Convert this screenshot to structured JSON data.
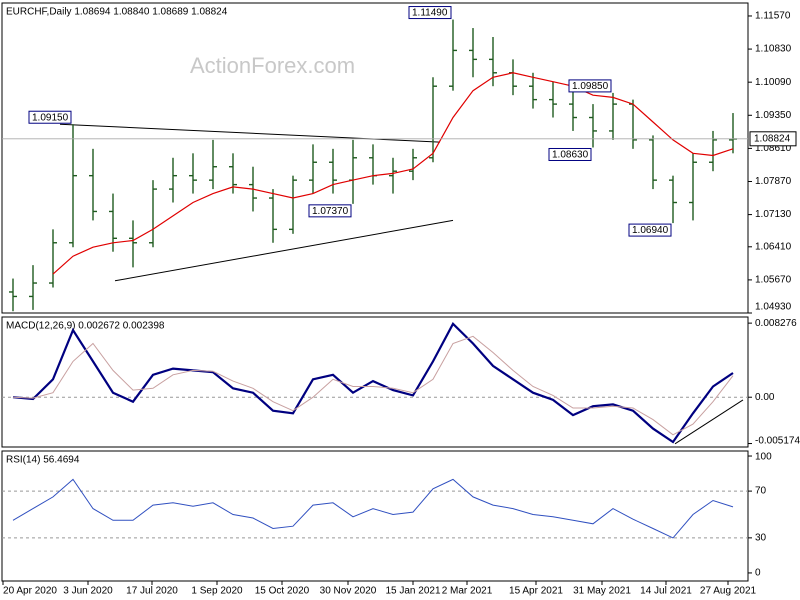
{
  "chart_data": [
    {
      "type": "ohlc",
      "title": "EURCHF,Daily  1.08694 1.08840 1.08689 1.08824",
      "watermark": "ActionForex.com",
      "xlim": [
        0,
        37
      ],
      "ylim": [
        1.0493,
        1.1186
      ],
      "yticks": [
        {
          "value": 1.1157,
          "label": "1.11570"
        },
        {
          "value": 1.1083,
          "label": "1.10830"
        },
        {
          "value": 1.1009,
          "label": "1.10090"
        },
        {
          "value": 1.0935,
          "label": "1.09350"
        },
        {
          "value": 1.0861,
          "label": "1.08610"
        },
        {
          "value": 1.0787,
          "label": "1.07870"
        },
        {
          "value": 1.0713,
          "label": "1.07130"
        },
        {
          "value": 1.0641,
          "label": "1.06410"
        },
        {
          "value": 1.0567,
          "label": "1.05670"
        },
        {
          "value": 1.0493,
          "label": "1.04930"
        }
      ],
      "color": "#1f5a1f",
      "open": [
        1.054,
        1.053,
        1.056,
        1.065,
        1.08,
        1.072,
        1.066,
        1.065,
        1.077,
        1.08,
        1.079,
        1.082,
        1.078,
        1.075,
        1.068,
        1.079,
        1.083,
        1.079,
        1.084,
        1.08,
        1.081,
        1.084,
        1.1,
        1.108,
        1.106,
        1.103,
        1.1,
        1.097,
        1.096,
        1.093,
        1.09,
        1.096,
        1.088,
        1.079,
        1.074,
        1.083,
        1.088
      ],
      "high": [
        1.057,
        1.06,
        1.068,
        1.0915,
        1.086,
        1.076,
        1.07,
        1.079,
        1.084,
        1.085,
        1.088,
        1.085,
        1.082,
        1.077,
        1.08,
        1.087,
        1.086,
        1.088,
        1.087,
        1.084,
        1.086,
        1.102,
        1.1149,
        1.113,
        1.111,
        1.106,
        1.103,
        1.101,
        1.099,
        1.096,
        1.0985,
        1.097,
        1.089,
        1.08,
        1.085,
        1.09,
        1.094
      ],
      "low": [
        1.0497,
        1.05,
        1.055,
        1.064,
        1.07,
        1.063,
        1.0595,
        1.064,
        1.074,
        1.076,
        1.077,
        1.076,
        1.072,
        1.065,
        1.067,
        1.076,
        1.076,
        1.0737,
        1.078,
        1.076,
        1.079,
        1.083,
        1.099,
        1.102,
        1.1,
        1.098,
        1.095,
        1.093,
        1.09,
        1.0863,
        1.088,
        1.086,
        1.077,
        1.0694,
        1.07,
        1.081,
        1.085
      ],
      "close": [
        1.053,
        1.056,
        1.065,
        1.08,
        1.072,
        1.066,
        1.065,
        1.077,
        1.08,
        1.079,
        1.082,
        1.078,
        1.075,
        1.068,
        1.079,
        1.083,
        1.079,
        1.084,
        1.08,
        1.081,
        1.084,
        1.1,
        1.108,
        1.106,
        1.103,
        1.1,
        1.097,
        1.096,
        1.093,
        1.09,
        1.096,
        1.088,
        1.079,
        1.074,
        1.083,
        1.088,
        1.0882
      ],
      "ma": {
        "color": "#e00000",
        "values": [
          null,
          null,
          1.058,
          1.062,
          1.064,
          1.065,
          1.0655,
          1.068,
          1.071,
          1.074,
          1.076,
          1.0775,
          1.077,
          1.076,
          1.075,
          1.076,
          1.078,
          1.079,
          1.08,
          1.0805,
          1.0815,
          1.085,
          1.093,
          1.099,
          1.102,
          1.103,
          1.102,
          1.101,
          1.1,
          1.098,
          1.0975,
          1.096,
          1.092,
          1.088,
          1.085,
          1.0845,
          1.086
        ]
      },
      "last_price": {
        "value": 1.08824,
        "label": "1.08824"
      },
      "trendlines": [
        {
          "x": [
            2.85,
            21.85
          ],
          "y": [
            1.0915,
            1.0875
          ]
        },
        {
          "x": [
            5.6,
            22.5
          ],
          "y": [
            1.0565,
            1.07
          ]
        }
      ],
      "annotations": [
        {
          "text": "1.11490",
          "x": 22,
          "value": 1.1149
        },
        {
          "text": "1.09150",
          "x": 3,
          "value": 1.0915
        },
        {
          "text": "1.07370",
          "x": 17,
          "value": 1.0737
        },
        {
          "text": "1.09850",
          "x": 30,
          "value": 1.0985
        },
        {
          "text": "1.08630",
          "x": 29,
          "value": 1.0863
        },
        {
          "text": "1.06940",
          "x": 33,
          "value": 1.0694
        }
      ]
    },
    {
      "type": "line",
      "title": "MACD(12,26,9) 0.002672 0.002398",
      "xlim": [
        0,
        37
      ],
      "ylim": [
        -0.00556,
        0.00896
      ],
      "yticks": [
        0.008276,
        {
          "value": 0,
          "label": "0.00"
        },
        -0.005174
      ],
      "levels": [
        0
      ],
      "series": [
        {
          "color": "#000080",
          "width": 2.2,
          "values": [
            0.0,
            -0.0002,
            0.002,
            0.0075,
            0.004,
            0.0005,
            -0.0005,
            0.0025,
            0.0032,
            0.003,
            0.0028,
            0.001,
            0.0005,
            -0.0015,
            -0.0018,
            0.002,
            0.0025,
            0.0005,
            0.0018,
            0.0008,
            0.0002,
            0.004,
            0.0082,
            0.006,
            0.0035,
            0.002,
            0.0005,
            -0.0003,
            -0.002,
            -0.001,
            -0.0008,
            -0.0015,
            -0.0035,
            -0.005,
            -0.0018,
            0.0012,
            0.0027
          ]
        },
        {
          "color": "#c8a0a0",
          "width": 1,
          "values": [
            0.0,
            -0.0001,
            0.0005,
            0.004,
            0.006,
            0.003,
            0.0008,
            0.001,
            0.0025,
            0.003,
            0.0029,
            0.0018,
            0.001,
            -0.0005,
            -0.0015,
            0.0,
            0.002,
            0.0012,
            0.0012,
            0.001,
            0.0005,
            0.002,
            0.006,
            0.0068,
            0.005,
            0.003,
            0.0012,
            0.0002,
            -0.0012,
            -0.0012,
            -0.001,
            -0.0012,
            -0.0025,
            -0.0042,
            -0.003,
            -0.0005,
            0.0024
          ]
        }
      ],
      "trendlines": [
        {
          "x": [
            33.6,
            37
          ],
          "y": [
            -0.0052,
            -0.0003
          ]
        }
      ]
    },
    {
      "type": "line",
      "title": "RSI(14) 56.4694",
      "xlim": [
        0,
        37
      ],
      "ylim": [
        -6.9,
        104.3
      ],
      "yticks": [
        100,
        70,
        30,
        0
      ],
      "levels": [
        70,
        30
      ],
      "series": [
        {
          "color": "#3050c0",
          "width": 1,
          "values": [
            45,
            55,
            65,
            80,
            55,
            45,
            45,
            58,
            60,
            57,
            60,
            50,
            47,
            38,
            40,
            58,
            60,
            48,
            55,
            50,
            52,
            72,
            80,
            65,
            58,
            55,
            50,
            48,
            45,
            42,
            55,
            46,
            38,
            30,
            50,
            62,
            56.5
          ]
        }
      ],
      "xticks": [
        {
          "value": 0,
          "label": "20 Apr 2020"
        },
        {
          "value": 4.25,
          "label": "3 Jun 2020"
        },
        {
          "value": 7.45,
          "label": "17 Jul 2020"
        },
        {
          "value": 10.7,
          "label": "1 Sep 2020"
        },
        {
          "value": 13.95,
          "label": "15 Oct 2020"
        },
        {
          "value": 17.25,
          "label": "30 Nov 2020"
        },
        {
          "value": 20.5,
          "label": "15 Jan 2021"
        },
        {
          "value": 23.2,
          "label": "2 Mar 2021"
        },
        {
          "value": 26.65,
          "label": "15 Apr 2021"
        },
        {
          "value": 29.95,
          "label": "31 May 2021"
        },
        {
          "value": 33.15,
          "label": "14 Jul 2021"
        },
        {
          "value": 36.25,
          "label": "27 Aug 2021"
        }
      ]
    }
  ]
}
